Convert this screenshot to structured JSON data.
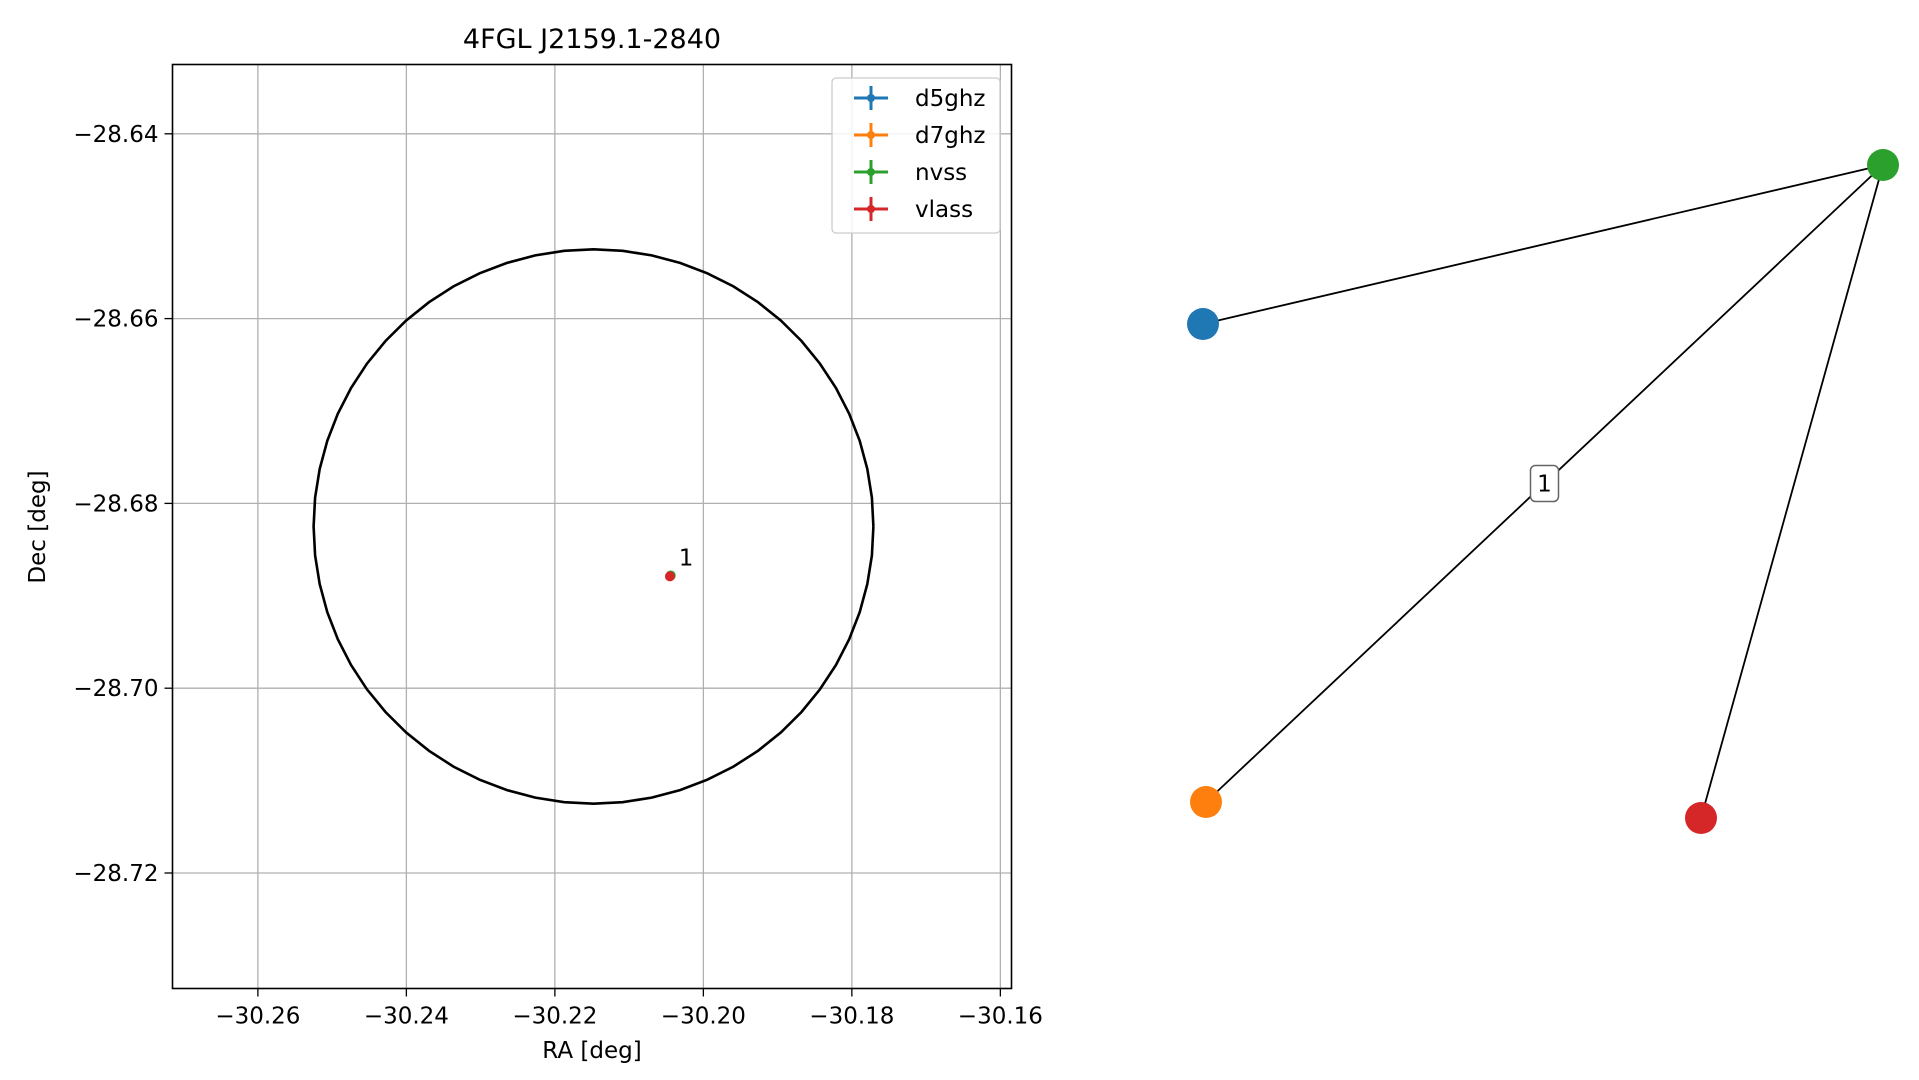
{
  "chart_data": [
    {
      "type": "scatter",
      "title": "4FGL J2159.1-2840",
      "xlabel": "RA [deg]",
      "ylabel": "Dec [deg]",
      "xlim": [
        -30.2715,
        -30.1585
      ],
      "ylim": [
        -28.7325,
        -28.6325
      ],
      "x_inverted": false,
      "grid": true,
      "legend_position": "top-right",
      "xticks": [
        -30.26,
        -30.24,
        -30.22,
        -30.2,
        -30.18,
        -30.16
      ],
      "xtick_labels": [
        "−30.26",
        "−30.24",
        "−30.22",
        "−30.20",
        "−30.18",
        "−30.16"
      ],
      "yticks": [
        -28.64,
        -28.66,
        -28.68,
        -28.7,
        -28.72
      ],
      "ytick_labels": [
        "−28.64",
        "−28.66",
        "−28.68",
        "−28.70",
        "−28.72"
      ],
      "series": [
        {
          "name": "d5ghz",
          "color": "#1f77b4",
          "points": []
        },
        {
          "name": "d7ghz",
          "color": "#ff7f0e",
          "points": []
        },
        {
          "name": "nvss",
          "color": "#2ca02c",
          "points": [
            {
              "x": -30.2044,
              "y": -28.6878
            }
          ]
        },
        {
          "name": "vlass",
          "color": "#d62728",
          "points": [
            {
              "x": -30.2045,
              "y": -28.6879
            }
          ]
        }
      ],
      "annotations": [
        {
          "text": "1",
          "x": -30.2044,
          "y": -28.6878
        }
      ],
      "error_ellipse": {
        "center_x": -30.2148,
        "center_y": -28.6825,
        "radius_x": 0.0377,
        "radius_y": 0.03,
        "color": "#000000"
      }
    },
    {
      "type": "network",
      "nodes": [
        {
          "id": "d5ghz",
          "color": "#1f77b4"
        },
        {
          "id": "d7ghz",
          "color": "#ff7f0e"
        },
        {
          "id": "nvss",
          "color": "#2ca02c"
        },
        {
          "id": "vlass",
          "color": "#d62728"
        }
      ],
      "edges": [
        {
          "source": "nvss",
          "target": "d5ghz",
          "label": ""
        },
        {
          "source": "nvss",
          "target": "d7ghz",
          "label": "1"
        },
        {
          "source": "nvss",
          "target": "vlass",
          "label": ""
        }
      ]
    }
  ]
}
